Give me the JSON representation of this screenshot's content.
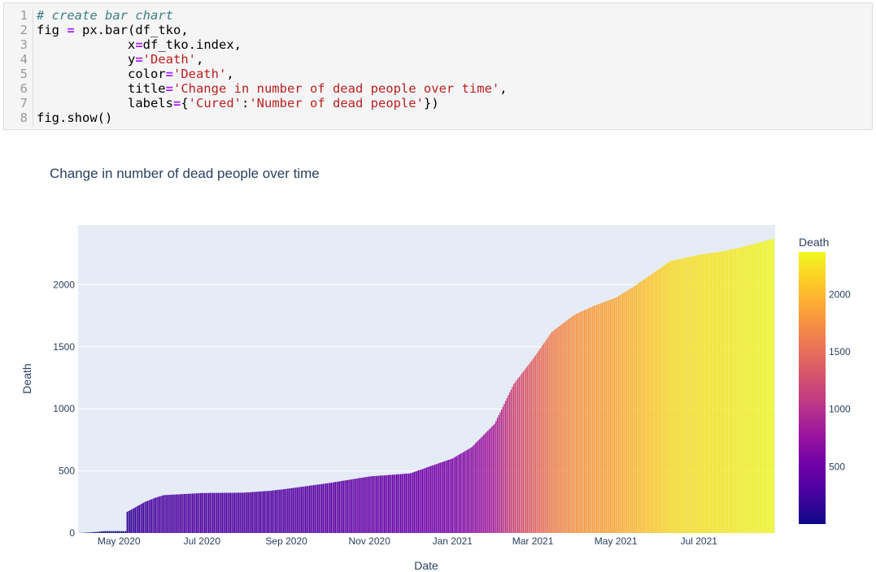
{
  "code": {
    "line_numbers": [
      "1",
      "2",
      "3",
      "4",
      "5",
      "6",
      "7",
      "8"
    ],
    "lines": [
      [
        {
          "t": "c",
          "v": "# create bar chart"
        }
      ],
      [
        {
          "t": "n",
          "v": "fig "
        },
        {
          "t": "o",
          "v": "="
        },
        {
          "t": "n",
          "v": " px.bar(df_tko,"
        }
      ],
      [
        {
          "t": "n",
          "v": "            x"
        },
        {
          "t": "o",
          "v": "="
        },
        {
          "t": "n",
          "v": "df_tko.index,"
        }
      ],
      [
        {
          "t": "n",
          "v": "            y"
        },
        {
          "t": "o",
          "v": "="
        },
        {
          "t": "s",
          "v": "'Death'"
        },
        {
          "t": "n",
          "v": ","
        }
      ],
      [
        {
          "t": "n",
          "v": "            color"
        },
        {
          "t": "o",
          "v": "="
        },
        {
          "t": "s",
          "v": "'Death'"
        },
        {
          "t": "n",
          "v": ","
        }
      ],
      [
        {
          "t": "n",
          "v": "            title"
        },
        {
          "t": "o",
          "v": "="
        },
        {
          "t": "s",
          "v": "'Change in number of dead people over time'"
        },
        {
          "t": "n",
          "v": ","
        }
      ],
      [
        {
          "t": "n",
          "v": "            labels"
        },
        {
          "t": "o",
          "v": "="
        },
        {
          "t": "n",
          "v": "{"
        },
        {
          "t": "s",
          "v": "'Cured'"
        },
        {
          "t": "n",
          "v": ":"
        },
        {
          "t": "s",
          "v": "'Number of dead people'"
        },
        {
          "t": "n",
          "v": "})"
        }
      ],
      [
        {
          "t": "n",
          "v": "fig.show()"
        }
      ]
    ]
  },
  "chart": {
    "title": "Change in number of dead people over time"
  },
  "chart_data": {
    "type": "bar",
    "title": "Change in number of dead people over time",
    "xlabel": "Date",
    "ylabel": "Death",
    "x_range": [
      "2020-04-01",
      "2021-08-26"
    ],
    "ylim": [
      0,
      2480
    ],
    "x_ticks": [
      "May 2020",
      "Jul 2020",
      "Sep 2020",
      "Nov 2020",
      "Jan 2021",
      "Mar 2021",
      "May 2021",
      "Jul 2021"
    ],
    "x_tick_dates": [
      "2020-05-01",
      "2020-07-01",
      "2020-09-01",
      "2020-11-01",
      "2021-01-01",
      "2021-03-01",
      "2021-05-01",
      "2021-07-01"
    ],
    "y_ticks": [
      0,
      500,
      1000,
      1500,
      2000
    ],
    "grid": true,
    "plot_background": "#e5ecf6",
    "colorbar": {
      "title": "Death",
      "ticks": [
        500,
        1000,
        1500,
        2000
      ],
      "range": [
        0,
        2370
      ],
      "colorscale": [
        "#0d0887",
        "#46039f",
        "#7201a8",
        "#9c179e",
        "#bd3786",
        "#d8576b",
        "#ed7953",
        "#fb9f3a",
        "#fdca26",
        "#f0f921"
      ]
    },
    "series": [
      {
        "start_date": "2020-04-02",
        "end_date": "2021-08-25",
        "keypoints": [
          [
            "2020-04-02",
            0
          ],
          [
            "2020-04-10",
            5
          ],
          [
            "2020-04-16",
            10
          ],
          [
            "2020-04-20",
            15
          ],
          [
            "2020-05-06",
            15
          ],
          [
            "2020-05-07",
            170
          ],
          [
            "2020-05-12",
            200
          ],
          [
            "2020-05-20",
            250
          ],
          [
            "2020-05-28",
            285
          ],
          [
            "2020-06-03",
            305
          ],
          [
            "2020-06-20",
            315
          ],
          [
            "2020-07-01",
            322
          ],
          [
            "2020-08-01",
            325
          ],
          [
            "2020-08-20",
            340
          ],
          [
            "2020-09-01",
            355
          ],
          [
            "2020-10-01",
            400
          ],
          [
            "2020-11-01",
            455
          ],
          [
            "2020-12-01",
            480
          ],
          [
            "2020-12-15",
            535
          ],
          [
            "2021-01-01",
            600
          ],
          [
            "2021-01-15",
            690
          ],
          [
            "2021-02-01",
            880
          ],
          [
            "2021-02-15",
            1200
          ],
          [
            "2021-03-01",
            1400
          ],
          [
            "2021-03-15",
            1620
          ],
          [
            "2021-03-27",
            1720
          ],
          [
            "2021-04-01",
            1760
          ],
          [
            "2021-04-15",
            1830
          ],
          [
            "2021-05-01",
            1895
          ],
          [
            "2021-05-15",
            1990
          ],
          [
            "2021-06-01",
            2120
          ],
          [
            "2021-06-10",
            2190
          ],
          [
            "2021-07-01",
            2240
          ],
          [
            "2021-07-20",
            2270
          ],
          [
            "2021-08-01",
            2300
          ],
          [
            "2021-08-25",
            2370
          ]
        ]
      }
    ]
  }
}
